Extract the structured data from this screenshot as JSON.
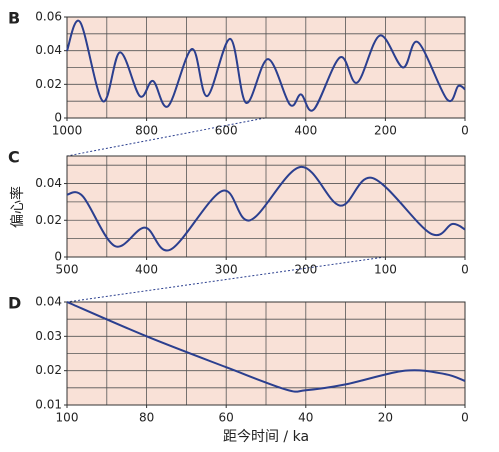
{
  "chart_data": [
    {
      "type": "line",
      "panel": "B",
      "xlim": [
        1000,
        0
      ],
      "ylim": [
        0,
        0.06
      ],
      "xticks": [
        1000,
        800,
        600,
        400,
        200,
        0
      ],
      "yticks": [
        0,
        0.02,
        0.04,
        0.06
      ],
      "xgrid": [
        900,
        800,
        700,
        600,
        500,
        400,
        300,
        200,
        100
      ],
      "ygrid": [
        0.01,
        0.02,
        0.03,
        0.04,
        0.05
      ],
      "series": [
        {
          "color": "#2b3f8f",
          "x": [
            1000,
            967,
            910,
            867,
            817,
            784,
            746,
            686,
            648,
            590,
            550,
            495,
            440,
            412,
            380,
            314,
            271,
            214,
            156,
            118,
            45,
            17,
            0
          ],
          "values": [
            0.04,
            0.057,
            0.01,
            0.039,
            0.013,
            0.022,
            0.007,
            0.041,
            0.013,
            0.047,
            0.009,
            0.035,
            0.008,
            0.014,
            0.005,
            0.036,
            0.021,
            0.049,
            0.03,
            0.045,
            0.011,
            0.019,
            0.017
          ]
        }
      ]
    },
    {
      "type": "line",
      "panel": "C",
      "ylabel": "偏心率",
      "xlim": [
        500,
        0
      ],
      "ylim": [
        0,
        0.055
      ],
      "xticks": [
        500,
        400,
        300,
        200,
        100,
        0
      ],
      "yticks": [
        0,
        0.02,
        0.04
      ],
      "xgrid": [
        450,
        400,
        350,
        300,
        250,
        200,
        150,
        100,
        50
      ],
      "ygrid": [
        0.01,
        0.02,
        0.03,
        0.04,
        0.05
      ],
      "series": [
        {
          "color": "#2b3f8f",
          "x": [
            500,
            480,
            440,
            402,
            370,
            305,
            270,
            207,
            157,
            116,
            44,
            16,
            0
          ],
          "values": [
            0.034,
            0.033,
            0.006,
            0.016,
            0.004,
            0.036,
            0.02,
            0.049,
            0.028,
            0.043,
            0.013,
            0.018,
            0.015
          ]
        }
      ]
    },
    {
      "type": "line",
      "panel": "D",
      "xlabel": "距今时间 / ka",
      "xlim": [
        100,
        0
      ],
      "ylim": [
        0.01,
        0.04
      ],
      "xticks": [
        100,
        80,
        60,
        40,
        20,
        0
      ],
      "yticks": [
        0.01,
        0.02,
        0.03,
        0.04
      ],
      "xgrid": [
        90,
        80,
        70,
        60,
        50,
        40,
        30,
        20,
        10
      ],
      "ygrid": [
        0.015,
        0.02,
        0.025,
        0.03,
        0.035
      ],
      "series": [
        {
          "color": "#2b3f8f",
          "x": [
            100,
            80,
            60,
            45,
            40,
            30,
            15,
            5,
            0
          ],
          "values": [
            0.04,
            0.03,
            0.021,
            0.0145,
            0.0143,
            0.016,
            0.02,
            0.019,
            0.017
          ]
        }
      ]
    }
  ]
}
